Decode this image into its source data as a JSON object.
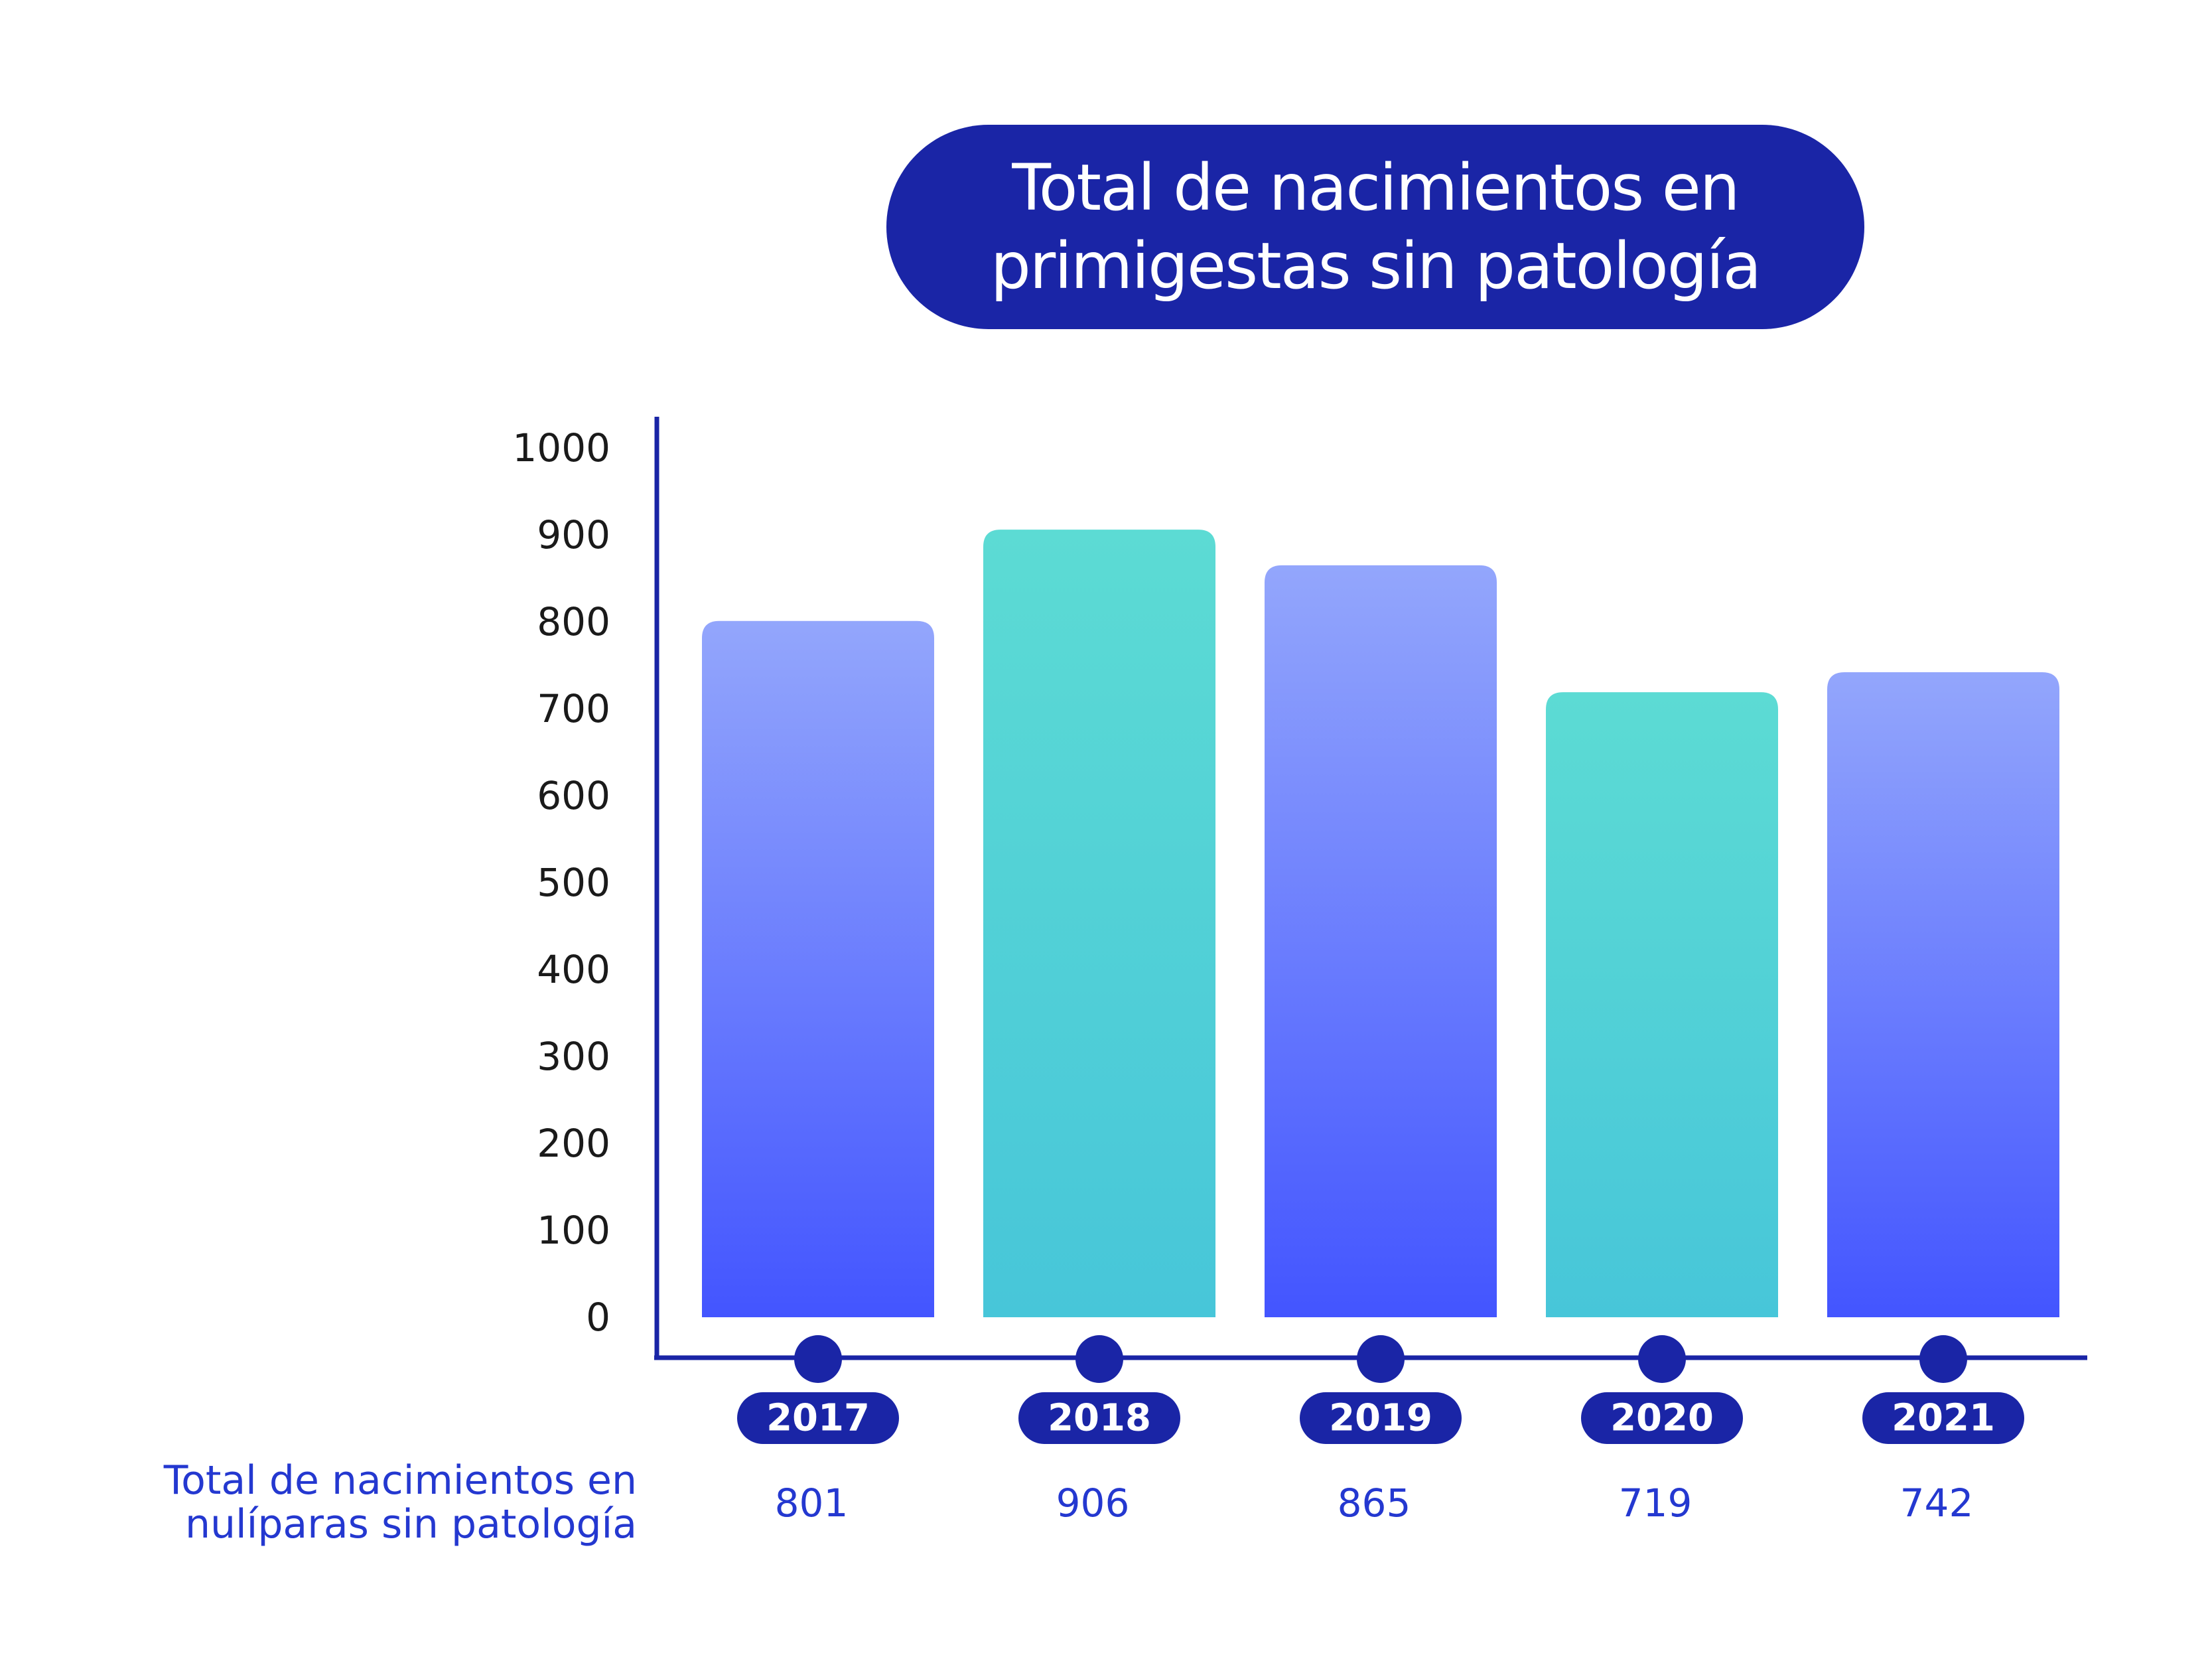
{
  "chart_data": {
    "type": "bar",
    "title_lines": [
      "Total de nacimientos en",
      "primigestas sin patología"
    ],
    "categories": [
      "2017",
      "2018",
      "2019",
      "2020",
      "2021"
    ],
    "values": [
      801,
      906,
      865,
      719,
      742
    ],
    "value_labels": [
      "801",
      "906",
      "865",
      "719",
      "742"
    ],
    "yticks": [
      "0",
      "100",
      "200",
      "300",
      "400",
      "500",
      "600",
      "700",
      "800",
      "900",
      "1000"
    ],
    "ylim": [
      0,
      1000
    ],
    "row_label_lines": [
      "Total de nacimientos en",
      "nulíparas sin patología"
    ],
    "grid": false,
    "legend": "none"
  },
  "colors": {
    "navy": "#1a25a6",
    "blue_top": "#93a6fc",
    "blue_bottom": "#4355ff",
    "teal_top": "#5cdbd4",
    "teal_bottom": "#47c6d9",
    "axis": "#1a25a6",
    "tick_text": "#1a1a1a",
    "value_text": "#2438d0"
  }
}
